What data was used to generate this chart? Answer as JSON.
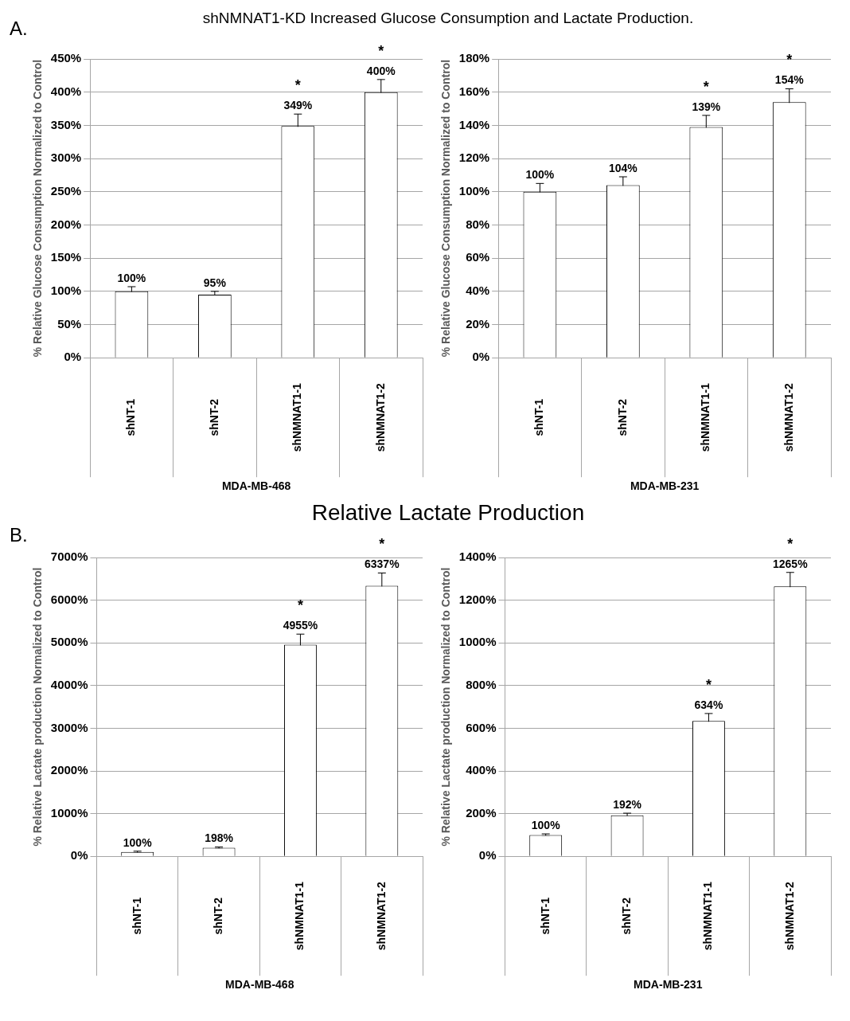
{
  "chart_data": [
    {
      "type": "bar",
      "title": "shNMNAT1-KD Increased Glucose Consumption and Lactate Production.",
      "ylabel": "% Relative Glucose Consumption Normalized to Control",
      "xlabel": "MDA-MB-468",
      "categories": [
        "shNT-1",
        "shNT-2",
        "shNMNAT1-1",
        "shNMNAT1-2"
      ],
      "values": [
        100,
        95,
        349,
        400
      ],
      "errors": [
        7,
        5,
        18,
        19
      ],
      "value_labels": [
        "100%",
        "95%",
        "349%",
        "400%"
      ],
      "colors": [
        "#ffffff",
        "#ffffff",
        "#ffffff",
        "#ffffff"
      ],
      "ylim": [
        0,
        450
      ],
      "yticks": [
        {
          "value": 0,
          "label": "0%"
        },
        {
          "value": 50,
          "label": "50%"
        },
        {
          "value": 100,
          "label": "100%"
        },
        {
          "value": 150,
          "label": "150%"
        },
        {
          "value": 200,
          "label": "200%"
        },
        {
          "value": 250,
          "label": "250%"
        },
        {
          "value": 300,
          "label": "300%"
        },
        {
          "value": 350,
          "label": "350%"
        },
        {
          "value": 400,
          "label": "400%"
        },
        {
          "value": 450,
          "label": "450%"
        }
      ],
      "grid": "y",
      "legend": false,
      "annotations": [
        "A.",
        "*",
        "*"
      ]
    },
    {
      "type": "bar",
      "ylabel": "% Relative Glucose Consumption Normalized to Control",
      "xlabel": "MDA-MB-231",
      "categories": [
        "shNT-1",
        "shNT-2",
        "shNMNAT1-1",
        "shNMNAT1-2"
      ],
      "values": [
        100,
        104,
        139,
        154
      ],
      "errors": [
        5,
        5,
        7,
        8
      ],
      "value_labels": [
        "100%",
        "104%",
        "139%",
        "154%"
      ],
      "colors": [
        "#ffffff",
        "#ffffff",
        "#ffffff",
        "#ffffff"
      ],
      "ylim": [
        0,
        180
      ],
      "yticks": [
        {
          "value": 0,
          "label": "0%"
        },
        {
          "value": 20,
          "label": "20%"
        },
        {
          "value": 40,
          "label": "40%"
        },
        {
          "value": 60,
          "label": "60%"
        },
        {
          "value": 80,
          "label": "80%"
        },
        {
          "value": 100,
          "label": "100%"
        },
        {
          "value": 120,
          "label": "120%"
        },
        {
          "value": 140,
          "label": "140%"
        },
        {
          "value": 160,
          "label": "160%"
        },
        {
          "value": 180,
          "label": "180%"
        }
      ],
      "grid": "y",
      "legend": false,
      "annotations": [
        "*",
        "*"
      ]
    },
    {
      "type": "bar",
      "title": "Relative Lactate Production",
      "ylabel": "% Relative Lactate production Normalized to Control",
      "xlabel": "MDA-MB-468",
      "categories": [
        "shNT-1",
        "shNT-2",
        "shNMNAT1-1",
        "shNMNAT1-2"
      ],
      "values": [
        100,
        198,
        4955,
        6337
      ],
      "errors": [
        20,
        20,
        250,
        300
      ],
      "value_labels": [
        "100%",
        "198%",
        "4955%",
        "6337%"
      ],
      "colors": [
        "#ffffff",
        "#ffffff",
        "#ffffff",
        "#ffffff"
      ],
      "ylim": [
        0,
        7000
      ],
      "yticks": [
        {
          "value": 0,
          "label": "0%"
        },
        {
          "value": 1000,
          "label": "1000%"
        },
        {
          "value": 2000,
          "label": "2000%"
        },
        {
          "value": 3000,
          "label": "3000%"
        },
        {
          "value": 4000,
          "label": "4000%"
        },
        {
          "value": 5000,
          "label": "5000%"
        },
        {
          "value": 6000,
          "label": "6000%"
        },
        {
          "value": 7000,
          "label": "7000%"
        }
      ],
      "grid": "y",
      "legend": false,
      "annotations": [
        "B.",
        "*",
        "*"
      ]
    },
    {
      "type": "bar",
      "ylabel": "% Relative Lactate production Normalized to Control",
      "xlabel": "MDA-MB-231",
      "categories": [
        "shNT-1",
        "shNT-2",
        "shNMNAT1-1",
        "shNMNAT1-2"
      ],
      "values": [
        100,
        192,
        634,
        1265
      ],
      "errors": [
        5,
        10,
        35,
        65
      ],
      "value_labels": [
        "100%",
        "192%",
        "634%",
        "1265%"
      ],
      "colors": [
        "#ffffff",
        "#ffffff",
        "#ffffff",
        "#ffffff"
      ],
      "ylim": [
        0,
        1400
      ],
      "yticks": [
        {
          "value": 0,
          "label": "0%"
        },
        {
          "value": 200,
          "label": "200%"
        },
        {
          "value": 400,
          "label": "400%"
        },
        {
          "value": 600,
          "label": "600%"
        },
        {
          "value": 800,
          "label": "800%"
        },
        {
          "value": 1000,
          "label": "1000%"
        },
        {
          "value": 1200,
          "label": "1200%"
        },
        {
          "value": 1400,
          "label": "1400%"
        }
      ],
      "grid": "y",
      "legend": false,
      "annotations": [
        "*",
        "*"
      ]
    }
  ]
}
